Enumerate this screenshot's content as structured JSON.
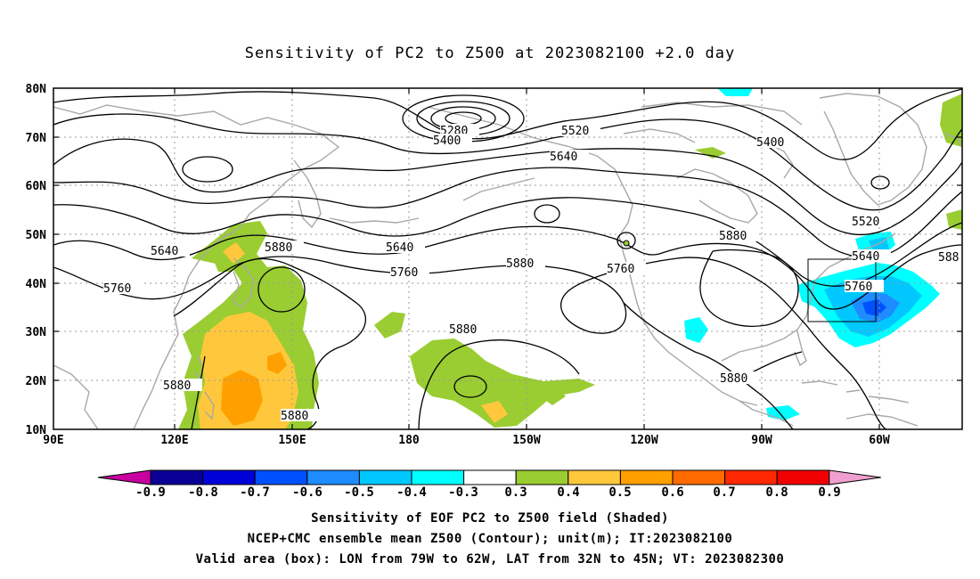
{
  "title": "Sensitivity of PC2 to Z500 at 2023082100 +2.0 day",
  "lat_labels": [
    "80N",
    "70N",
    "60N",
    "50N",
    "40N",
    "30N",
    "20N",
    "10N"
  ],
  "lon_labels": [
    "90E",
    "120E",
    "150E",
    "180",
    "150W",
    "120W",
    "90W",
    "60W"
  ],
  "contour_labels": [
    "5280",
    "5400",
    "5520",
    "5640",
    "5400",
    "5640",
    "5520",
    "5640",
    "5880",
    "5640",
    "5760",
    "5880",
    "5760",
    "5880",
    "5520",
    "5640",
    "5760",
    "588",
    "5880",
    "5880",
    "5880",
    "5880",
    "5760"
  ],
  "colorbar": {
    "labels": [
      "-0.9",
      "-0.8",
      "-0.7",
      "-0.6",
      "-0.5",
      "-0.4",
      "-0.3",
      "0.3",
      "0.4",
      "0.5",
      "0.6",
      "0.7",
      "0.8",
      "0.9"
    ],
    "colors": [
      "#0a0096",
      "#0000d8",
      "#0050ff",
      "#1e8cff",
      "#00c8ff",
      "#00ffff",
      "#ffffff",
      "#9acd32",
      "#ffc83c",
      "#ffa000",
      "#ff6a00",
      "#ff2800",
      "#f00000"
    ],
    "left_tip": "#c800a0",
    "right_tip": "#f0a0d0"
  },
  "captions": [
    "Sensitivity of EOF PC2 to Z500 field (Shaded)",
    "NCEP+CMC ensemble mean Z500 (Contour); unit(m); IT:2023082100",
    "Valid area (box): LON from 79W to 62W, LAT from 32N to 45N; VT: 2023082300"
  ]
}
